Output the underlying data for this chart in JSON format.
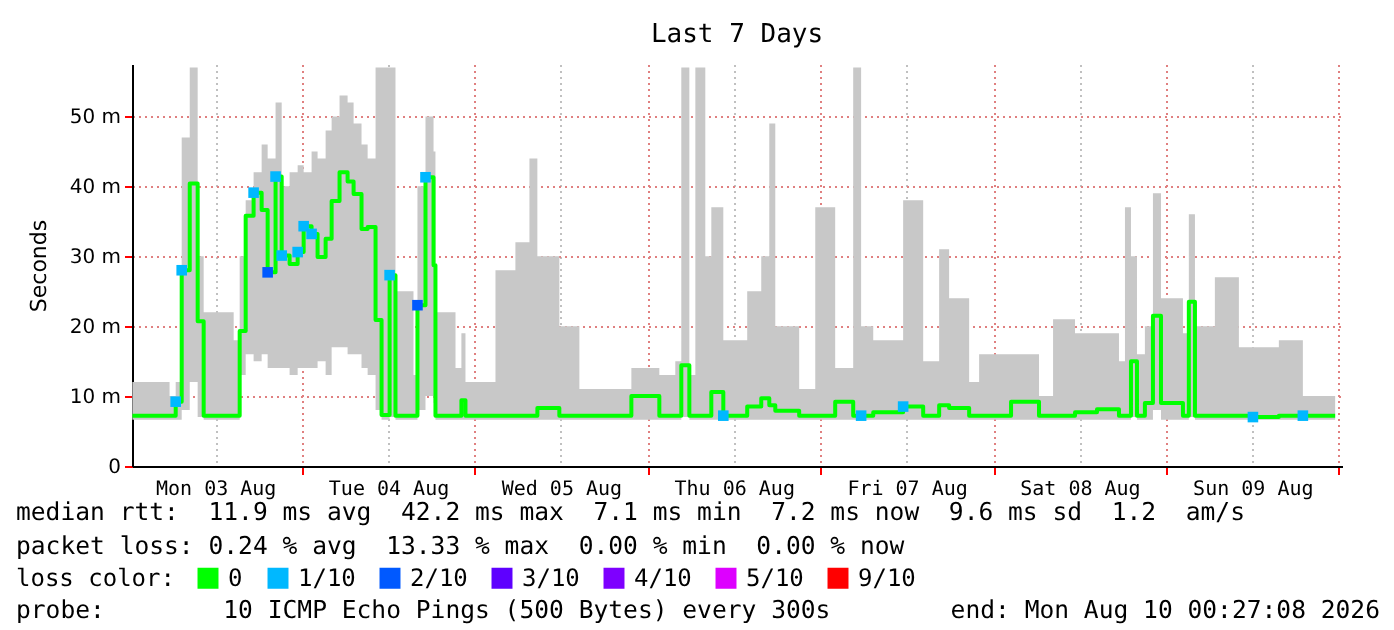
{
  "chart_data": {
    "type": "step",
    "title": "Last 7 Days",
    "ylabel": "Seconds",
    "legend_title": "loss color:",
    "legend": "bottom",
    "grid": true,
    "xlim": [
      "2026-08-03T00:27",
      "2026-08-10T00:27"
    ],
    "xticks": [
      {
        "value": "2026-08-03T12:00",
        "label": "Mon 03 Aug"
      },
      {
        "value": "2026-08-04T00:00",
        "label": null
      },
      {
        "value": "2026-08-04T12:00",
        "label": "Tue 04 Aug"
      },
      {
        "value": "2026-08-05T00:00",
        "label": null
      },
      {
        "value": "2026-08-05T12:00",
        "label": "Wed 05 Aug"
      },
      {
        "value": "2026-08-06T00:00",
        "label": null
      },
      {
        "value": "2026-08-06T12:00",
        "label": "Thu 06 Aug"
      },
      {
        "value": "2026-08-07T00:00",
        "label": null
      },
      {
        "value": "2026-08-07T12:00",
        "label": "Fri 07 Aug"
      },
      {
        "value": "2026-08-08T00:00",
        "label": null
      },
      {
        "value": "2026-08-08T12:00",
        "label": "Sat 08 Aug"
      },
      {
        "value": "2026-08-09T00:00",
        "label": null
      },
      {
        "value": "2026-08-09T12:00",
        "label": "Sun 09 Aug"
      },
      {
        "value": "2026-08-10T00:00",
        "label": null
      }
    ],
    "ylim": [
      0,
      57.5
    ],
    "yticks": [
      0,
      {
        "value": 10,
        "label": "10 m"
      },
      {
        "value": 20,
        "label": "20 m"
      },
      {
        "value": 30,
        "label": "30 m"
      },
      {
        "value": 40,
        "label": "40 m"
      },
      {
        "value": 50,
        "label": "50 m"
      }
    ],
    "series": [
      {
        "name": "0",
        "color": "#00ff00",
        "x": [
          "2026-08-03T00:30",
          "2026-08-03T05:40",
          "2026-08-03T06:31",
          "2026-08-03T07:21",
          "2026-08-03T08:28",
          "2026-08-03T09:34",
          "2026-08-03T10:24",
          "2026-08-03T14:34",
          "2026-08-03T15:24",
          "2026-08-03T16:14",
          "2026-08-03T17:20",
          "2026-08-03T18:27",
          "2026-08-03T19:17",
          "2026-08-03T20:23",
          "2026-08-03T21:14",
          "2026-08-03T22:20",
          "2026-08-03T23:27",
          "2026-08-04T00:17",
          "2026-08-04T01:23",
          "2026-08-04T02:13",
          "2026-08-04T03:20",
          "2026-08-04T04:10",
          "2026-08-04T05:16",
          "2026-08-04T06:23",
          "2026-08-04T07:13",
          "2026-08-04T08:19",
          "2026-08-04T09:10",
          "2026-08-04T10:16",
          "2026-08-04T11:06",
          "2026-08-04T12:13",
          "2026-08-04T13:02",
          "2026-08-04T15:32",
          "2026-08-04T16:05",
          "2026-08-04T17:12",
          "2026-08-04T18:19",
          "2026-08-04T18:35",
          "2026-08-04T21:22",
          "2026-08-04T22:11",
          "2026-08-04T22:45",
          "2026-08-05T02:55",
          "2026-08-05T05:41",
          "2026-08-05T07:38",
          "2026-08-05T08:44",
          "2026-08-05T11:47",
          "2026-08-05T14:34",
          "2026-08-05T21:47",
          "2026-08-06T01:40",
          "2026-08-06T03:53",
          "2026-08-06T04:43",
          "2026-08-06T05:50",
          "2026-08-06T06:40",
          "2026-08-06T08:03",
          "2026-08-06T08:53",
          "2026-08-06T10:33",
          "2026-08-06T13:52",
          "2026-08-06T15:49",
          "2026-08-06T16:56",
          "2026-08-06T17:46",
          "2026-08-06T21:05",
          "2026-08-06T23:19",
          "2026-08-07T02:05",
          "2026-08-07T04:35",
          "2026-08-07T05:41",
          "2026-08-07T07:22",
          "2026-08-07T11:31",
          "2026-08-07T14:18",
          "2026-08-07T16:31",
          "2026-08-07T17:54",
          "2026-08-07T20:41",
          "2026-08-07T22:04",
          "2026-08-08T02:30",
          "2026-08-08T06:23",
          "2026-08-08T08:20",
          "2026-08-08T11:23",
          "2026-08-08T14:26",
          "2026-08-08T17:29",
          "2026-08-08T18:19",
          "2026-08-08T19:09",
          "2026-08-08T19:59",
          "2026-08-08T21:05",
          "2026-08-08T22:12",
          "2026-08-08T23:19",
          "2026-08-09T02:22",
          "2026-08-09T03:11",
          "2026-08-09T04:02",
          "2026-08-09T06:48",
          "2026-08-09T10:08",
          "2026-08-09T12:05",
          "2026-08-09T15:41",
          "2026-08-09T19:01",
          "2026-08-09T22:04",
          "2026-08-09T23:30"
        ],
        "values": [
          7.2,
          7.2,
          9.2,
          28.0,
          40.4,
          20.7,
          7.2,
          7.2,
          19.3,
          35.8,
          39.1,
          36.6,
          27.7,
          41.4,
          30.1,
          28.9,
          30.6,
          34.3,
          33.2,
          29.9,
          32.5,
          37.9,
          42.0,
          40.7,
          38.9,
          33.9,
          34.2,
          20.9,
          7.3,
          27.3,
          7.2,
          7.2,
          23.0,
          41.3,
          28.7,
          7.2,
          7.2,
          9.4,
          7.2,
          7.2,
          7.2,
          7.2,
          8.3,
          7.2,
          7.2,
          10.0,
          7.2,
          7.2,
          14.4,
          7.2,
          7.2,
          7.2,
          10.6,
          7.2,
          8.5,
          9.7,
          8.7,
          7.9,
          7.2,
          7.2,
          9.2,
          7.2,
          7.2,
          7.7,
          8.5,
          7.2,
          8.7,
          8.3,
          7.2,
          7.2,
          9.2,
          7.2,
          7.2,
          7.7,
          8.1,
          7.2,
          7.2,
          15.0,
          7.2,
          9.0,
          21.5,
          9.0,
          7.2,
          23.5,
          7.2,
          7.2,
          7.2,
          7.0,
          7.2,
          7.2,
          7.2,
          7.2
        ],
        "lower": [
          6.6,
          6.6,
          6.6,
          8,
          12,
          7,
          6.6,
          6.6,
          13,
          16,
          15,
          16,
          14,
          14,
          14,
          13,
          14,
          14,
          14,
          15,
          13,
          17,
          17,
          16,
          16,
          14,
          13,
          8,
          6.6,
          7,
          6.6,
          6.6,
          8,
          10,
          9,
          6.6,
          6.6,
          6.6,
          6.6,
          6.6,
          6.6,
          6.6,
          6.6,
          6.6,
          6.6,
          6.6,
          6.6,
          6.6,
          7,
          6.6,
          6.6,
          6.6,
          6.6,
          6.6,
          6.6,
          6.6,
          6.6,
          6.6,
          6.6,
          6.6,
          6.6,
          6.6,
          6.6,
          6.6,
          6.6,
          6.6,
          6.6,
          6.6,
          6.6,
          6.6,
          6.6,
          6.6,
          6.6,
          6.6,
          6.6,
          6.6,
          6.6,
          7,
          6.6,
          6.6,
          8,
          6.6,
          6.6,
          7,
          6.6,
          6.6,
          6.6,
          6.6,
          6.6,
          6.6,
          6.6,
          6.6
        ],
        "upper": [
          12,
          10,
          12,
          47,
          57,
          30,
          22,
          18,
          30,
          38,
          42,
          46,
          44,
          52,
          40,
          42,
          43,
          42,
          45,
          44,
          48,
          50,
          53,
          52,
          49,
          46,
          44,
          57,
          57,
          57,
          25,
          13,
          40,
          50,
          45,
          22,
          14,
          19,
          12,
          28,
          32,
          44,
          30,
          20,
          11,
          14,
          13,
          15,
          57,
          13,
          57,
          30,
          37,
          18,
          25,
          30,
          49,
          20,
          11,
          37,
          14,
          57,
          20,
          18,
          38,
          15,
          31,
          24,
          12,
          16,
          16,
          10,
          21,
          19,
          19,
          15,
          37,
          30,
          16,
          20,
          39,
          24,
          19,
          36,
          20,
          27,
          17,
          17,
          18,
          10,
          10,
          10
        ]
      },
      {
        "name": "1/10",
        "color": "#00b8ff",
        "type": "scatter",
        "marker": "square",
        "x": [
          "2026-08-03T06:31",
          "2026-08-03T07:21",
          "2026-08-03T17:20",
          "2026-08-03T20:23",
          "2026-08-03T21:14",
          "2026-08-03T23:27",
          "2026-08-04T00:17",
          "2026-08-04T01:23",
          "2026-08-04T12:13",
          "2026-08-04T17:12",
          "2026-08-06T10:33",
          "2026-08-07T05:41",
          "2026-08-07T11:31",
          "2026-08-09T12:05",
          "2026-08-09T19:01"
        ],
        "values": [
          9.2,
          28.0,
          39.1,
          41.4,
          30.1,
          30.6,
          34.3,
          33.2,
          27.3,
          41.3,
          7.2,
          7.2,
          8.5,
          7.0,
          7.2
        ]
      },
      {
        "name": "2/10",
        "color": "#0059ff",
        "type": "scatter",
        "marker": "square",
        "x": [
          "2026-08-03T19:17",
          "2026-08-04T16:05"
        ],
        "values": [
          27.7,
          23.0
        ]
      },
      {
        "name": "3/10",
        "color": "#5e00ff",
        "type": "scatter"
      },
      {
        "name": "4/10",
        "color": "#7e00ff",
        "type": "scatter"
      },
      {
        "name": "5/10",
        "color": "#dd00ff",
        "type": "scatter"
      },
      {
        "name": "9/10",
        "color": "#ff0000",
        "type": "scatter"
      }
    ],
    "annotations": [
      "median rtt:  11.9 ms avg  42.2 ms max  7.1 ms min  7.2 ms now  9.6 ms sd  1.2  am/s",
      "packet loss: 0.24 % avg  13.33 % max  0.00 % min  0.00 % now",
      "probe:        10 ICMP Echo Pings (500 Bytes) every 300s",
      "end: Mon Aug 10 00:27:08 2026"
    ]
  }
}
